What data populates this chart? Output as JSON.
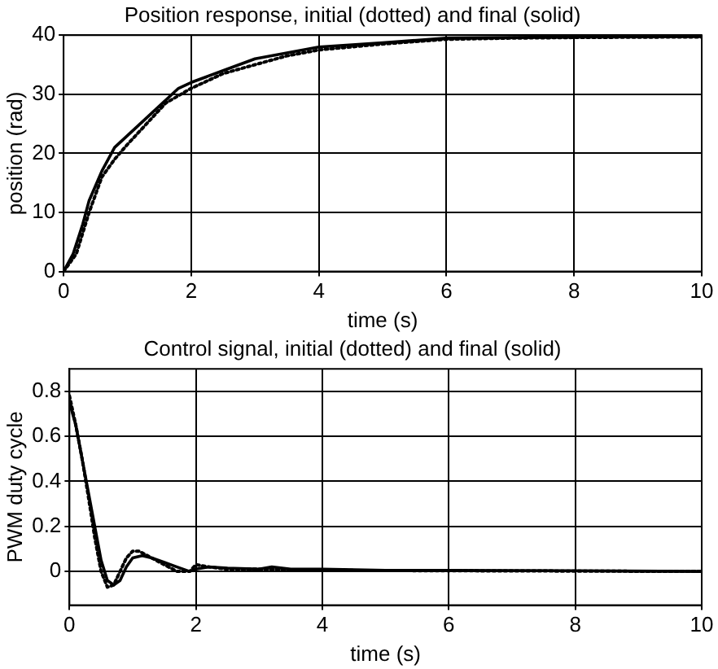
{
  "chart_data": [
    {
      "type": "line",
      "title": "Position response, initial (dotted) and final (solid)",
      "xlabel": "time (s)",
      "ylabel": "position (rad)",
      "xlim": [
        0,
        10
      ],
      "ylim": [
        0,
        40
      ],
      "xticks": [
        0,
        2,
        4,
        6,
        8,
        10
      ],
      "yticks": [
        0,
        10,
        20,
        30,
        40
      ],
      "grid": true,
      "marker": "none",
      "series": [
        {
          "color": "#000000",
          "line_style": "dotted",
          "x": [
            0,
            0.2,
            0.4,
            0.6,
            0.8,
            1,
            1.3,
            1.6,
            2,
            2.5,
            3,
            3.5,
            4,
            5,
            6,
            7,
            8,
            10
          ],
          "values": [
            0,
            3,
            10,
            16,
            19,
            21.5,
            25,
            28.5,
            31,
            33.5,
            35,
            36.5,
            37.5,
            38.5,
            39.3,
            39.5,
            39.6,
            39.7
          ]
        },
        {
          "color": "#000000",
          "line_style": "solid",
          "x": [
            0,
            0.15,
            0.3,
            0.4,
            0.6,
            0.8,
            1,
            1.3,
            1.5,
            1.8,
            2,
            2.5,
            3,
            3.5,
            4,
            5,
            6,
            7,
            8,
            10
          ],
          "values": [
            0,
            3,
            8,
            12,
            17,
            21,
            23,
            26,
            28,
            31,
            32,
            34,
            36,
            37,
            38,
            38.7,
            39.5,
            39.6,
            39.7,
            39.8
          ]
        }
      ]
    },
    {
      "type": "line",
      "title": "Control signal, initial (dotted) and final (solid)",
      "xlabel": "time (s)",
      "ylabel": "PWM duty cycle",
      "xlim": [
        0,
        10
      ],
      "ylim": [
        -0.15,
        0.9
      ],
      "xticks": [
        0,
        2,
        4,
        6,
        8,
        10
      ],
      "yticks": [
        0,
        0.2,
        0.4,
        0.6,
        0.8
      ],
      "grid": true,
      "marker": "none",
      "series": [
        {
          "color": "#000000",
          "line_style": "dotted",
          "x": [
            0,
            0.1,
            0.2,
            0.3,
            0.4,
            0.5,
            0.6,
            0.7,
            0.8,
            0.9,
            1.0,
            1.1,
            1.3,
            1.5,
            1.7,
            1.9,
            2.0,
            2.2,
            2.5,
            3,
            4,
            6,
            10
          ],
          "values": [
            0.78,
            0.65,
            0.5,
            0.33,
            0.15,
            0.0,
            -0.07,
            -0.06,
            0.0,
            0.06,
            0.09,
            0.09,
            0.06,
            0.03,
            0.0,
            0.0,
            0.03,
            0.02,
            0.01,
            0.01,
            0.005,
            0.003,
            0
          ]
        },
        {
          "color": "#000000",
          "line_style": "solid",
          "x": [
            0,
            0.1,
            0.2,
            0.3,
            0.4,
            0.5,
            0.6,
            0.7,
            0.8,
            0.9,
            1.0,
            1.15,
            1.3,
            1.5,
            1.7,
            1.9,
            2.0,
            2.2,
            2.5,
            3,
            3.2,
            3.5,
            4,
            5,
            6,
            8,
            10
          ],
          "values": [
            0.75,
            0.65,
            0.5,
            0.35,
            0.2,
            0.05,
            -0.04,
            -0.06,
            -0.04,
            0.02,
            0.06,
            0.07,
            0.06,
            0.04,
            0.02,
            0.0,
            0.01,
            0.02,
            0.015,
            0.01,
            0.02,
            0.01,
            0.01,
            0.005,
            0.005,
            0.003,
            0
          ]
        }
      ]
    }
  ]
}
